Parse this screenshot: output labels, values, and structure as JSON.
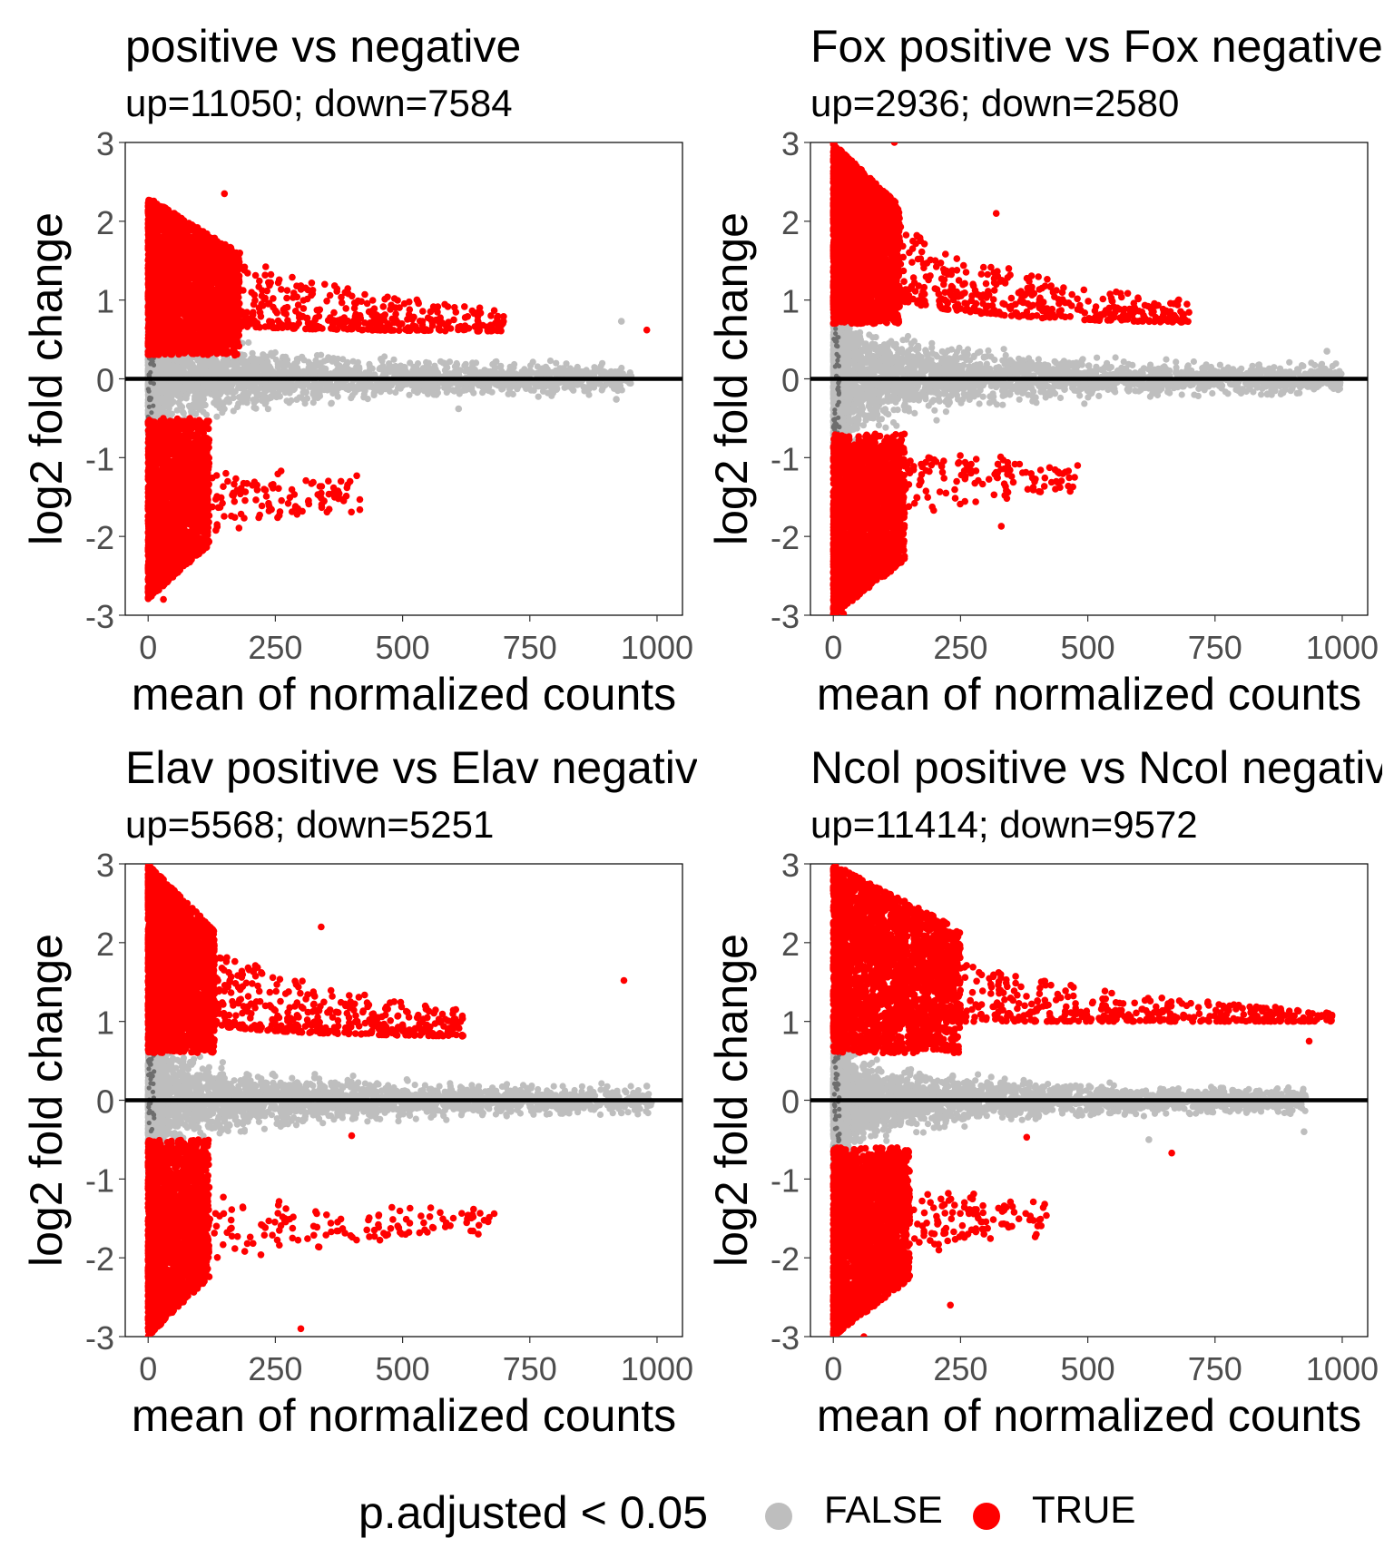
{
  "chart_data": [
    {
      "type": "scatter",
      "title": "positive vs negative",
      "subtitle": "up=11050; down=7584",
      "xlabel": "mean of normalized counts",
      "ylabel": "log2 fold change",
      "xlim": [
        -45,
        1050
      ],
      "ylim": [
        -3,
        3
      ],
      "xticks": [
        "0",
        "250",
        "500",
        "750",
        "1000"
      ],
      "yticks": [
        "3",
        "2",
        "1",
        "0",
        "-1",
        "-2",
        "-3"
      ],
      "hline": 0,
      "counts": {
        "up": 11050,
        "down": 7584
      },
      "regions": {
        "up_core": {
          "x_max": 180,
          "y_min": 0.3,
          "y_max": 2.3
        },
        "up_tail": {
          "x_max": 700,
          "y_end": 0.6
        },
        "down_core": {
          "x_max": 120,
          "y_min": -2.8,
          "y_max": -0.5
        },
        "down_tail": {
          "x_max": 420,
          "y_end": -1.3
        },
        "ns_x_max": 950,
        "ns_band": 0.9
      },
      "highlighted_points": [
        {
          "x": 980,
          "y": 0.62,
          "sig": true
        },
        {
          "x": 930,
          "y": 0.73,
          "sig": false
        },
        {
          "x": 920,
          "y": -0.26,
          "sig": false
        },
        {
          "x": 610,
          "y": -0.38,
          "sig": false
        },
        {
          "x": 410,
          "y": -1.23,
          "sig": true
        },
        {
          "x": 340,
          "y": -1.45,
          "sig": true
        },
        {
          "x": 150,
          "y": 2.35,
          "sig": true
        },
        {
          "x": 30,
          "y": -2.8,
          "sig": true
        }
      ]
    },
    {
      "type": "scatter",
      "title": "Fox positive vs Fox negative",
      "subtitle": "up=2936; down=2580",
      "xlabel": "mean of normalized counts",
      "ylabel": "log2 fold change",
      "xlim": [
        -45,
        1050
      ],
      "ylim": [
        -3,
        3
      ],
      "xticks": [
        "0",
        "250",
        "500",
        "750",
        "1000"
      ],
      "yticks": [
        "3",
        "2",
        "1",
        "0",
        "-1",
        "-2",
        "-3"
      ],
      "hline": 0,
      "counts": {
        "up": 2936,
        "down": 2580
      },
      "regions": {
        "up_core": {
          "x_max": 130,
          "y_min": 0.7,
          "y_max": 3.0
        },
        "up_tail": {
          "x_max": 700,
          "y_end": 0.7
        },
        "down_core": {
          "x_max": 140,
          "y_min": -3.0,
          "y_max": -0.7
        },
        "down_tail": {
          "x_max": 480,
          "y_end": -1.1
        },
        "ns_x_max": 1000,
        "ns_band": 1.0
      },
      "highlighted_points": [
        {
          "x": 970,
          "y": 0.35,
          "sig": false
        },
        {
          "x": 930,
          "y": -0.07,
          "sig": false
        },
        {
          "x": 690,
          "y": 0.75,
          "sig": true
        },
        {
          "x": 480,
          "y": -1.1,
          "sig": true
        },
        {
          "x": 320,
          "y": 2.1,
          "sig": true
        },
        {
          "x": 330,
          "y": -1.87,
          "sig": true
        },
        {
          "x": 120,
          "y": 3.0,
          "sig": true
        },
        {
          "x": 20,
          "y": -2.98,
          "sig": true
        }
      ]
    },
    {
      "type": "scatter",
      "title": "Elav positive vs Elav negative",
      "subtitle": "up=5568; down=5251",
      "xlabel": "mean of normalized counts",
      "ylabel": "log2 fold change",
      "xlim": [
        -45,
        1050
      ],
      "ylim": [
        -3,
        3
      ],
      "xticks": [
        "0",
        "250",
        "500",
        "750",
        "1000"
      ],
      "yticks": [
        "3",
        "2",
        "1",
        "0",
        "-1",
        "-2",
        "-3"
      ],
      "hline": 0,
      "counts": {
        "up": 5568,
        "down": 5251
      },
      "regions": {
        "up_core": {
          "x_max": 130,
          "y_min": 0.6,
          "y_max": 3.0
        },
        "up_tail": {
          "x_max": 620,
          "y_end": 0.8
        },
        "down_core": {
          "x_max": 120,
          "y_min": -3.0,
          "y_max": -0.5
        },
        "down_tail": {
          "x_max": 680,
          "y_end": -1.4
        },
        "ns_x_max": 990,
        "ns_band": 0.9
      },
      "highlighted_points": [
        {
          "x": 935,
          "y": 1.52,
          "sig": true
        },
        {
          "x": 980,
          "y": 0.18,
          "sig": false
        },
        {
          "x": 930,
          "y": -0.16,
          "sig": false
        },
        {
          "x": 680,
          "y": -1.44,
          "sig": true
        },
        {
          "x": 600,
          "y": 1.02,
          "sig": true
        },
        {
          "x": 400,
          "y": -0.45,
          "sig": true
        },
        {
          "x": 340,
          "y": 2.2,
          "sig": true
        },
        {
          "x": 300,
          "y": -2.9,
          "sig": true
        }
      ]
    },
    {
      "type": "scatter",
      "title": "Ncol positive vs Ncol negative",
      "subtitle": "up=11414; down=9572",
      "xlabel": "mean of normalized counts",
      "ylabel": "log2 fold change",
      "xlim": [
        -45,
        1050
      ],
      "ylim": [
        -3,
        3
      ],
      "xticks": [
        "0",
        "250",
        "500",
        "750",
        "1000"
      ],
      "yticks": [
        "3",
        "2",
        "1",
        "0",
        "-1",
        "-2",
        "-3"
      ],
      "hline": 0,
      "counts": {
        "up": 11414,
        "down": 9572
      },
      "regions": {
        "up_core": {
          "x_max": 250,
          "y_min": 0.6,
          "y_max": 3.0
        },
        "up_tail": {
          "x_max": 980,
          "y_end": 1.0
        },
        "down_core": {
          "x_max": 150,
          "y_min": -3.0,
          "y_max": -0.6
        },
        "down_tail": {
          "x_max": 420,
          "y_end": -1.3
        },
        "ns_x_max": 930,
        "ns_band": 0.8
      },
      "highlighted_points": [
        {
          "x": 980,
          "y": 1.08,
          "sig": true
        },
        {
          "x": 935,
          "y": 0.75,
          "sig": true
        },
        {
          "x": 925,
          "y": -0.4,
          "sig": false
        },
        {
          "x": 665,
          "y": -0.67,
          "sig": true
        },
        {
          "x": 620,
          "y": -0.5,
          "sig": false
        },
        {
          "x": 380,
          "y": -0.47,
          "sig": true
        },
        {
          "x": 230,
          "y": -2.6,
          "sig": true
        },
        {
          "x": 60,
          "y": -3.0,
          "sig": true
        }
      ]
    }
  ],
  "legend": {
    "title": "p.adjusted < 0.05",
    "items": [
      {
        "label": "FALSE",
        "color": "#bebebe"
      },
      {
        "label": "TRUE",
        "color": "#ff0000"
      }
    ]
  },
  "colors": {
    "sig": "#ff0000",
    "nonsig": "#bebebe",
    "nonsig_dark": "#6e6e6e",
    "axis": "#000000"
  }
}
